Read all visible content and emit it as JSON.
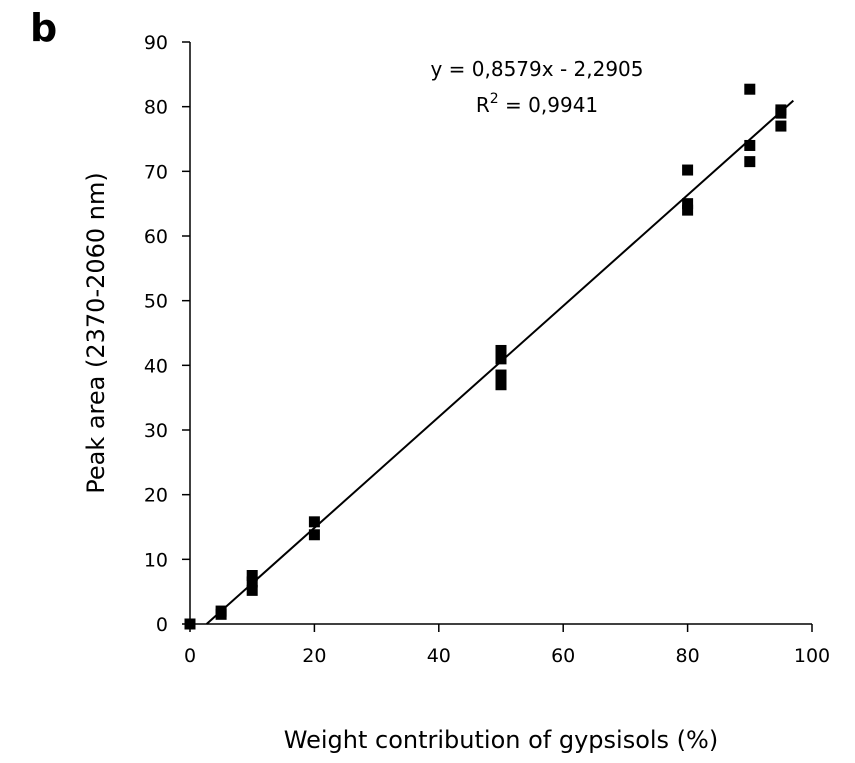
{
  "figure": {
    "panel_label": "b"
  },
  "chart_data": {
    "type": "scatter",
    "title": "",
    "xlabel": "Weight contribution of gypsisols (%)",
    "ylabel": "Peak area (2370-2060 nm)",
    "xlim": [
      0,
      100
    ],
    "ylim": [
      0,
      90
    ],
    "xticks": [
      "0",
      "20",
      "40",
      "60",
      "80",
      "100"
    ],
    "yticks": [
      "0",
      "10",
      "20",
      "30",
      "40",
      "50",
      "60",
      "70",
      "80",
      "90"
    ],
    "grid": false,
    "legend": "none",
    "marker_color": "#000000",
    "points": [
      {
        "x": 0,
        "y": 0
      },
      {
        "x": 5,
        "y": 1.5
      },
      {
        "x": 5,
        "y": 2
      },
      {
        "x": 10,
        "y": 5.2
      },
      {
        "x": 10,
        "y": 6.5
      },
      {
        "x": 10,
        "y": 7.5
      },
      {
        "x": 20,
        "y": 13.8
      },
      {
        "x": 20,
        "y": 15.8
      },
      {
        "x": 50,
        "y": 37
      },
      {
        "x": 50,
        "y": 38.5
      },
      {
        "x": 50,
        "y": 41
      },
      {
        "x": 50,
        "y": 42.3
      },
      {
        "x": 80,
        "y": 64
      },
      {
        "x": 80,
        "y": 65
      },
      {
        "x": 80,
        "y": 70.2
      },
      {
        "x": 90,
        "y": 71.5
      },
      {
        "x": 90,
        "y": 74
      },
      {
        "x": 90,
        "y": 82.7
      },
      {
        "x": 95,
        "y": 77
      },
      {
        "x": 95,
        "y": 79
      },
      {
        "x": 95,
        "y": 79.5
      }
    ],
    "trendline": {
      "slope": 0.8579,
      "intercept": -2.2905,
      "x_range": [
        2.67,
        97
      ],
      "equation_label": "y = 0,8579x - 2,2905",
      "r2_prefix": "R",
      "r2_superscript": "2",
      "r2_value": " = 0,9941"
    }
  }
}
